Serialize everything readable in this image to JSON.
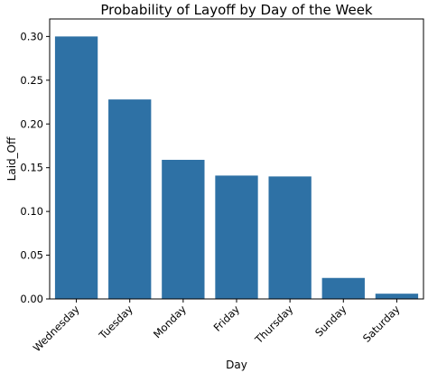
{
  "chart_data": {
    "type": "bar",
    "title": "Probability of Layoff by Day of the Week",
    "xlabel": "Day",
    "ylabel": "Laid_Off",
    "categories": [
      "Wednesday",
      "Tuesday",
      "Monday",
      "Friday",
      "Thursday",
      "Sunday",
      "Saturday"
    ],
    "values": [
      0.3,
      0.228,
      0.159,
      0.141,
      0.14,
      0.024,
      0.006
    ],
    "ylim": [
      0,
      0.32
    ],
    "yticks": [
      "0.00",
      "0.05",
      "0.10",
      "0.15",
      "0.20",
      "0.25",
      "0.30"
    ],
    "grid": false,
    "legend": "none",
    "bar_color": "#2e71a5"
  }
}
